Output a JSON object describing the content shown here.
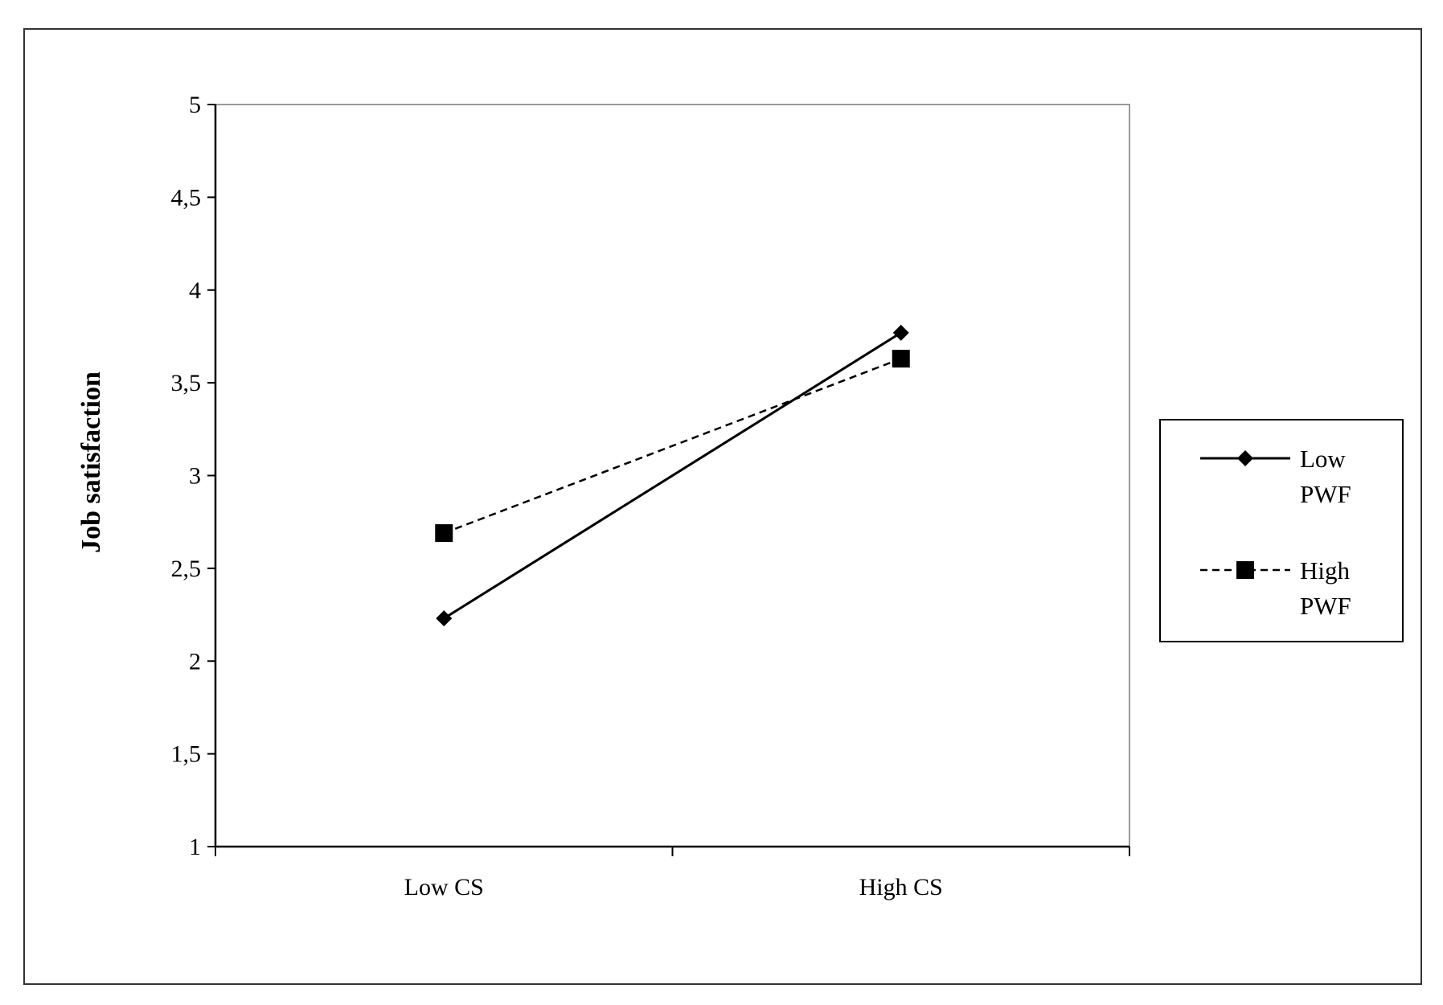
{
  "chart_data": {
    "type": "line",
    "title": "",
    "xlabel": "",
    "ylabel": "Job satisfaction",
    "categories": [
      "Low CS",
      "High CS"
    ],
    "ylim": [
      1,
      5
    ],
    "yticks": [
      1,
      1.5,
      2,
      2.5,
      3,
      3.5,
      4,
      4.5,
      5
    ],
    "ytick_labels": [
      "1",
      "1,5",
      "2",
      "2,5",
      "3",
      "3,5",
      "4",
      "4,5",
      "5"
    ],
    "grid": false,
    "legend_position": "right",
    "series": [
      {
        "name": "Low PWF",
        "legend_lines": [
          "Low",
          "PWF"
        ],
        "values": [
          2.23,
          3.77
        ],
        "line_style": "solid",
        "marker": "diamond",
        "color": "#000000"
      },
      {
        "name": "High PWF",
        "legend_lines": [
          "High",
          "PWF"
        ],
        "values": [
          2.69,
          3.63
        ],
        "line_style": "dashed",
        "marker": "square",
        "color": "#000000"
      }
    ]
  }
}
